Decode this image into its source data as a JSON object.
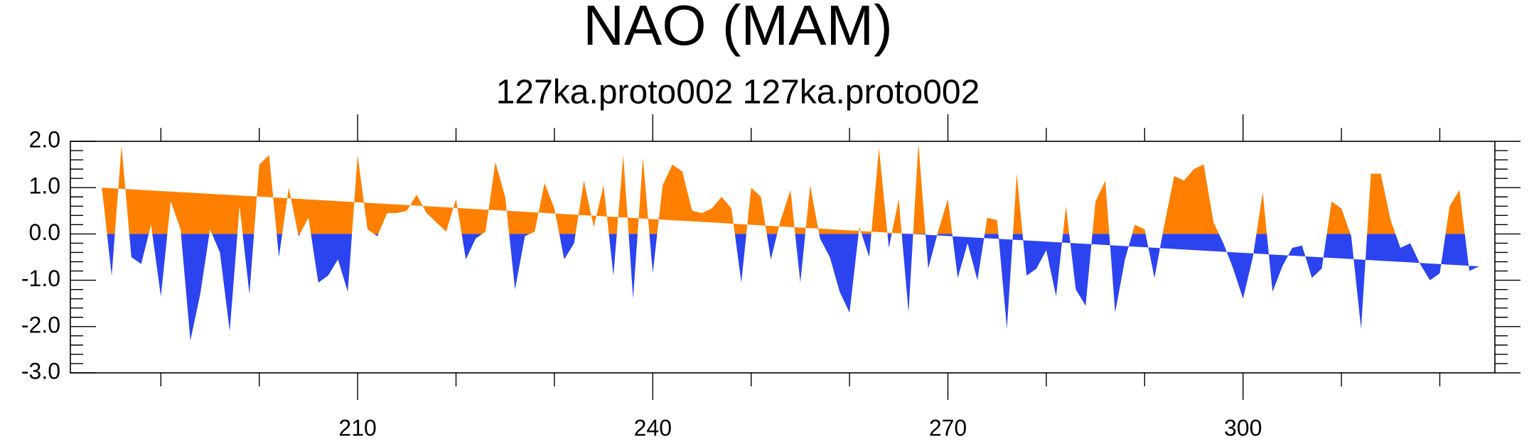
{
  "chart_data": {
    "type": "area",
    "title": "NAO (MAM)",
    "subtitle": "127ka.proto002  127ka.proto002",
    "x": [
      184,
      185,
      186,
      187,
      188,
      189,
      190,
      191,
      192,
      193,
      194,
      195,
      196,
      197,
      198,
      199,
      200,
      201,
      202,
      203,
      204,
      205,
      206,
      207,
      208,
      209,
      210,
      211,
      212,
      213,
      214,
      215,
      216,
      217,
      218,
      219,
      220,
      221,
      222,
      223,
      224,
      225,
      226,
      227,
      228,
      229,
      230,
      231,
      232,
      233,
      234,
      235,
      236,
      237,
      238,
      239,
      240,
      241,
      242,
      243,
      244,
      245,
      246,
      247,
      248,
      249,
      250,
      251,
      252,
      253,
      254,
      255,
      256,
      257,
      258,
      259,
      260,
      261,
      262,
      263,
      264,
      265,
      266,
      267,
      268,
      269,
      270,
      271,
      272,
      273,
      274,
      275,
      276,
      277,
      278,
      279,
      280,
      281,
      282,
      283,
      284,
      285,
      286,
      287,
      288,
      289,
      290,
      291,
      292,
      293,
      294,
      295,
      296,
      297,
      298,
      299,
      300,
      301,
      302,
      303,
      304,
      305,
      306,
      307,
      308,
      309,
      310,
      311,
      312,
      313,
      314,
      315,
      316,
      317,
      318,
      319,
      320,
      321,
      322,
      323,
      324
    ],
    "values": [
      1.0,
      -0.9,
      1.9,
      -0.5,
      -0.65,
      0.2,
      -1.35,
      0.7,
      0.1,
      -2.3,
      -1.3,
      0.1,
      -0.4,
      -2.1,
      0.6,
      -1.3,
      1.5,
      1.7,
      -0.5,
      1.0,
      -0.05,
      0.35,
      -1.05,
      -0.9,
      -0.55,
      -1.25,
      1.7,
      0.1,
      -0.05,
      0.45,
      0.45,
      0.5,
      0.85,
      0.45,
      0.25,
      0.05,
      0.75,
      -0.55,
      -0.1,
      0.05,
      1.55,
      0.8,
      -1.2,
      -0.05,
      0.05,
      1.1,
      0.55,
      -0.55,
      -0.2,
      1.15,
      0.15,
      1.05,
      -0.9,
      1.7,
      -1.4,
      1.65,
      -0.85,
      1.05,
      1.5,
      1.35,
      0.5,
      0.45,
      0.55,
      0.8,
      0.55,
      -1.05,
      1.0,
      0.8,
      -0.55,
      0.3,
      0.95,
      -1.05,
      1.05,
      -0.1,
      -0.5,
      -1.25,
      -1.7,
      0.15,
      -0.5,
      1.85,
      -0.3,
      0.75,
      -1.7,
      1.95,
      -0.75,
      0.05,
      0.75,
      -0.95,
      -0.2,
      -1.0,
      0.35,
      0.3,
      -2.05,
      1.3,
      -0.9,
      -0.75,
      -0.35,
      -1.35,
      0.6,
      -1.2,
      -1.55,
      0.7,
      1.15,
      -1.7,
      -0.55,
      0.2,
      0.1,
      -0.95,
      0.2,
      1.25,
      1.15,
      1.4,
      1.5,
      0.25,
      -0.2,
      -0.75,
      -1.4,
      -0.5,
      0.9,
      -1.25,
      -0.7,
      -0.3,
      -0.25,
      -0.95,
      -0.75,
      0.7,
      0.55,
      -0.05,
      -2.05,
      1.3,
      1.3,
      0.3,
      -0.3,
      -0.2,
      -0.65,
      -1.0,
      -0.85,
      0.6,
      0.95,
      -0.8,
      -0.7
    ],
    "positive_color": "#ff8000",
    "negative_color": "#2c43f0",
    "xlim": [
      180.8,
      325.6
    ],
    "xticks": [
      210,
      240,
      270,
      300
    ],
    "x_minor_ticks": [
      190,
      200,
      220,
      230,
      250,
      260,
      280,
      290,
      310,
      320
    ],
    "ylim": [
      -3,
      2
    ],
    "yticks": [
      {
        "value": 2,
        "label": "2.0"
      },
      {
        "value": 1,
        "label": "1.0"
      },
      {
        "value": 0,
        "label": "0.0"
      },
      {
        "value": -1,
        "label": "-1.0"
      },
      {
        "value": -2,
        "label": "-2.0"
      },
      {
        "value": -3,
        "label": "-3.0"
      }
    ],
    "y_minor_ticks": [
      1.8,
      1.6,
      1.4,
      1.2,
      0.8,
      0.6,
      0.4,
      0.2,
      -0.2,
      -0.4,
      -0.6,
      -0.8,
      -1.2,
      -1.4,
      -1.6,
      -1.8,
      -2.2,
      -2.4,
      -2.6,
      -2.8
    ]
  }
}
